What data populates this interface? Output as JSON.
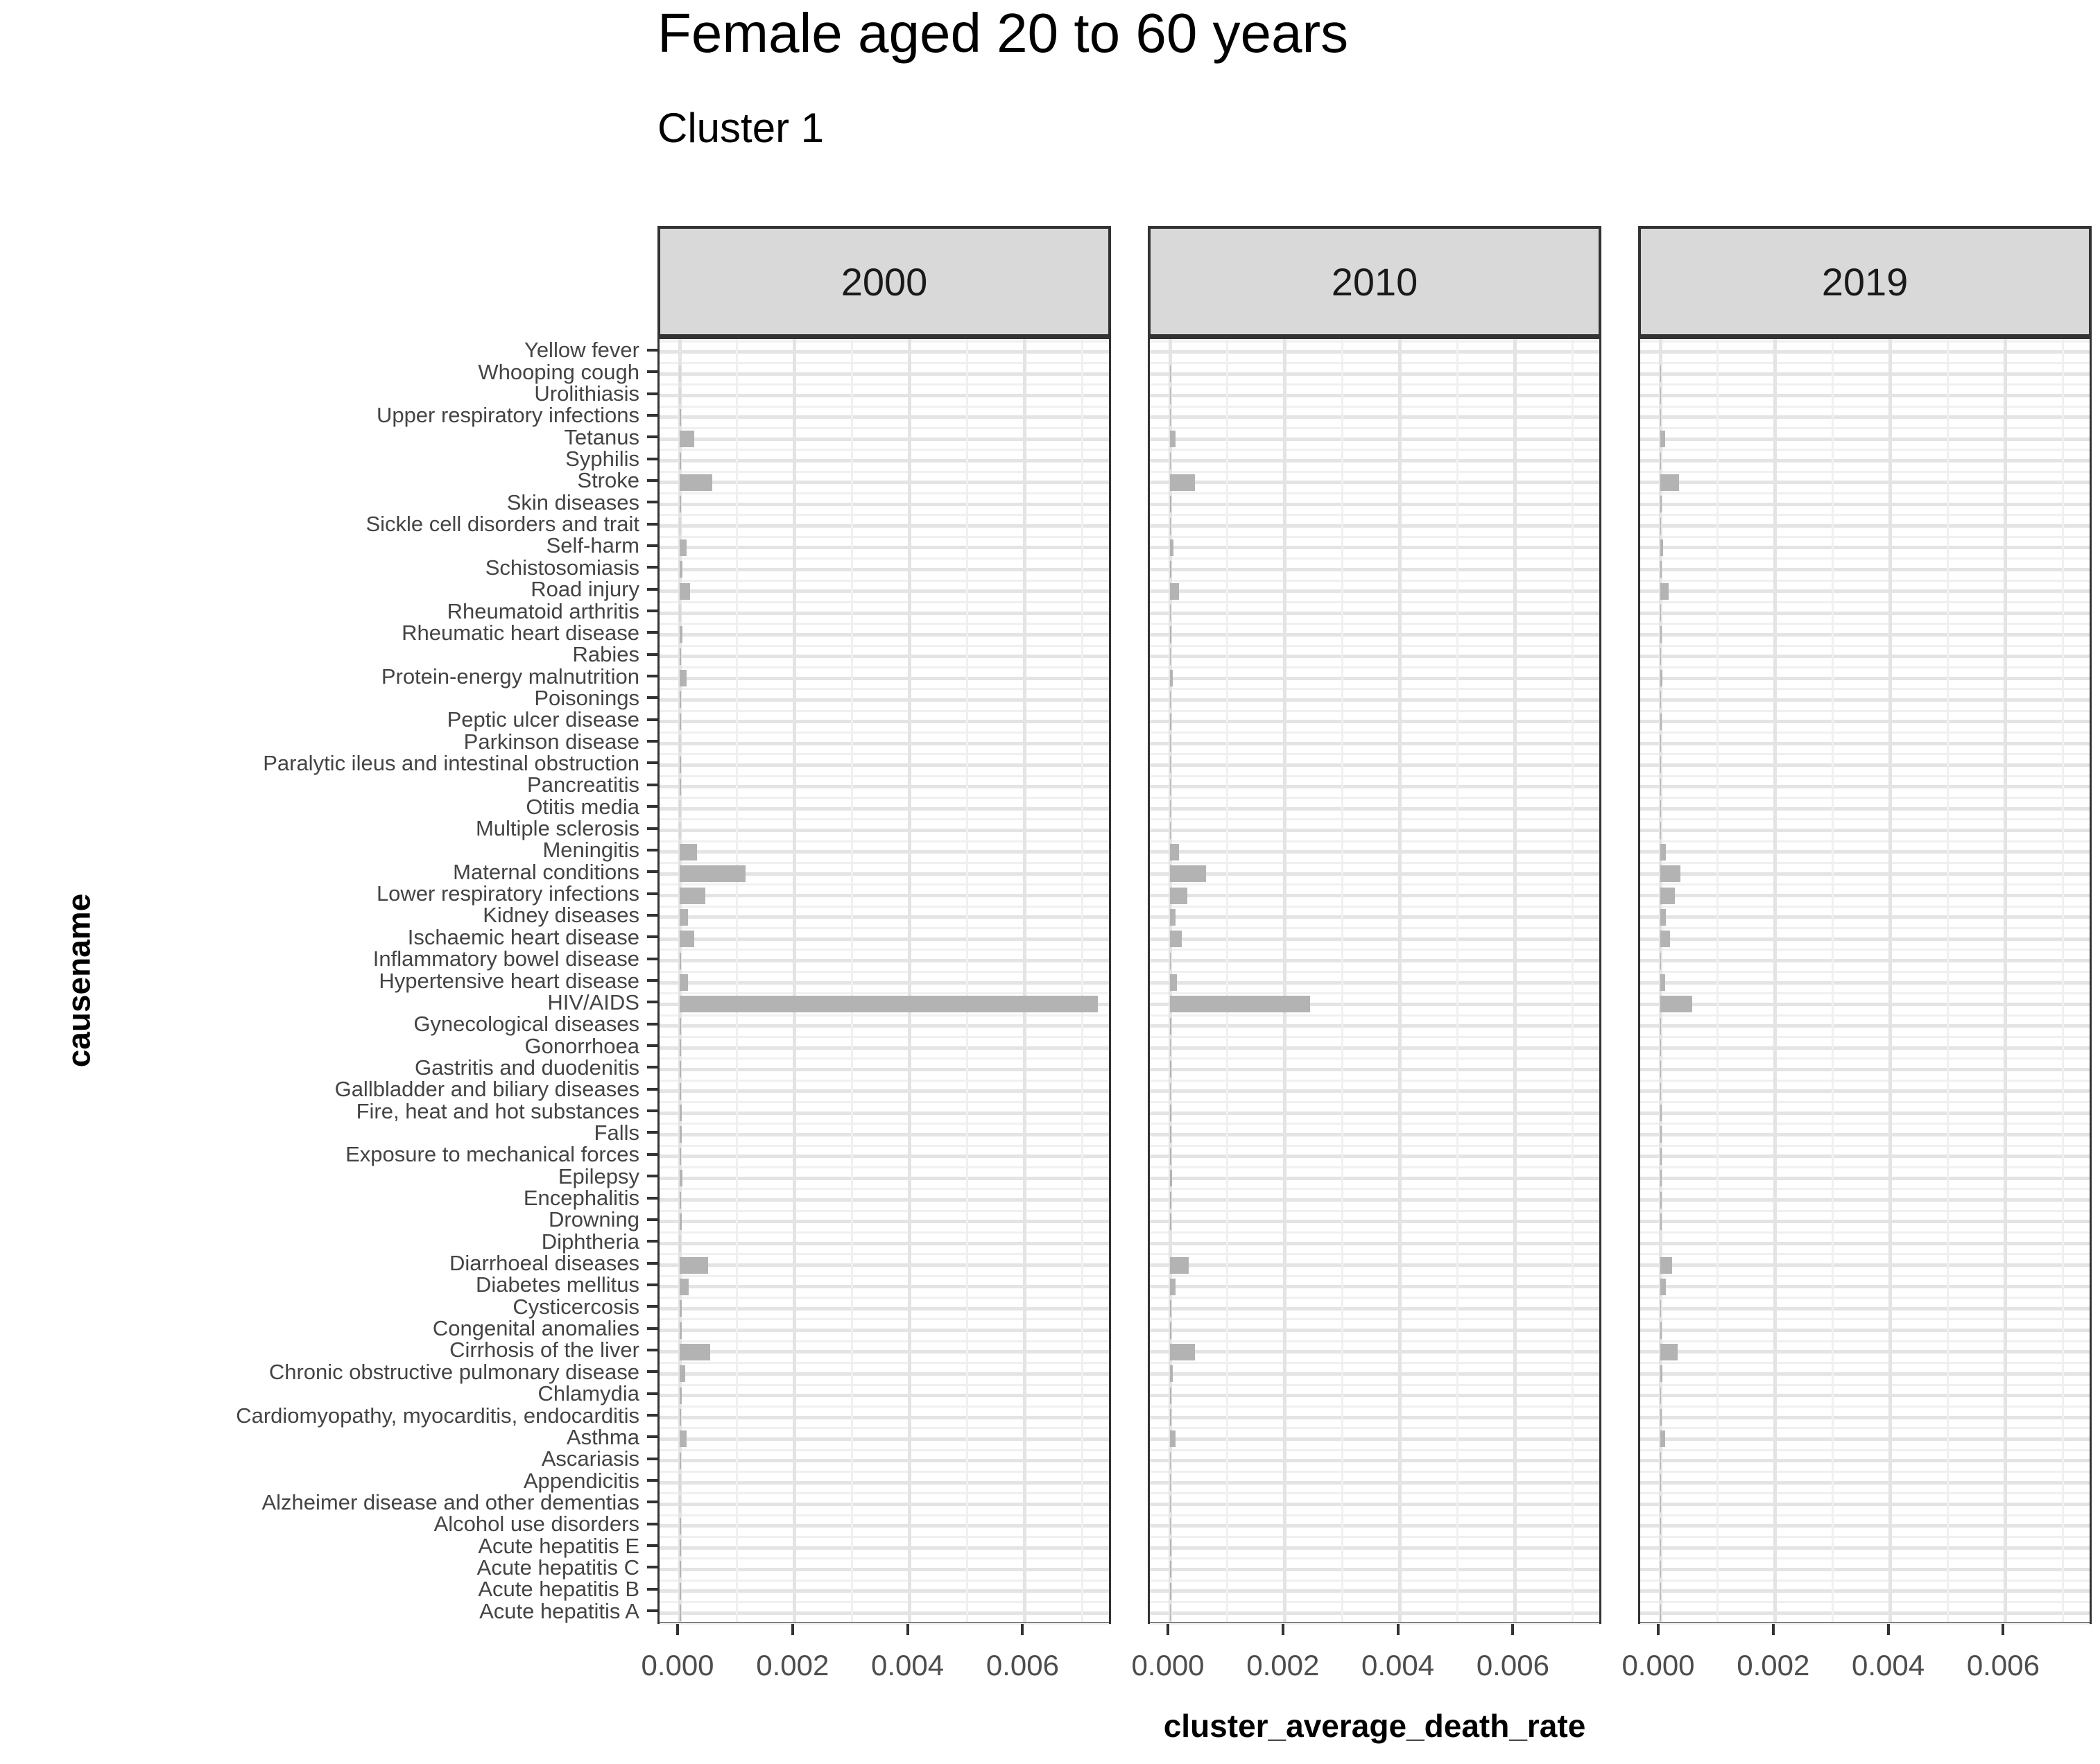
{
  "title": "Female aged 20 to 60 years",
  "subtitle": "Cluster 1",
  "axes": {
    "x_title": "cluster_average_death_rate",
    "y_title": "causename",
    "x_tick_labels": [
      "0.000",
      "0.002",
      "0.004",
      "0.006"
    ],
    "x_tick_values": [
      0,
      0.002,
      0.004,
      0.006
    ],
    "x_minor_values": [
      0.001,
      0.003,
      0.005,
      0.007
    ]
  },
  "facets": [
    "2000",
    "2010",
    "2019"
  ],
  "colors": {
    "bar": "#b3b3b3",
    "strip_bg": "#d9d9d9",
    "strip_border": "#333333",
    "panel_border": "#333333",
    "grid_major": "#e4e4e4",
    "grid_minor": "#f0f0f0",
    "axis_text": "#4d4d4d",
    "tick_mark": "#333333"
  },
  "chart_data": {
    "type": "bar",
    "orientation": "horizontal",
    "title": "Female aged 20 to 60 years",
    "subtitle": "Cluster 1",
    "xlabel": "cluster_average_death_rate",
    "ylabel": "causename",
    "xlim": [
      0,
      0.0078
    ],
    "grid": true,
    "legend_position": "none",
    "facet_labels": [
      "2000",
      "2010",
      "2019"
    ],
    "categories": [
      "Yellow fever",
      "Whooping cough",
      "Urolithiasis",
      "Upper respiratory infections",
      "Tetanus",
      "Syphilis",
      "Stroke",
      "Skin diseases",
      "Sickle cell disorders and trait",
      "Self-harm",
      "Schistosomiasis",
      "Road injury",
      "Rheumatoid arthritis",
      "Rheumatic heart disease",
      "Rabies",
      "Protein-energy malnutrition",
      "Poisonings",
      "Peptic ulcer disease",
      "Parkinson disease",
      "Paralytic ileus and intestinal obstruction",
      "Pancreatitis",
      "Otitis media",
      "Multiple sclerosis",
      "Meningitis",
      "Maternal conditions",
      "Lower respiratory infections",
      "Kidney diseases",
      "Ischaemic heart disease",
      "Inflammatory bowel disease",
      "Hypertensive heart disease",
      "HIV/AIDS",
      "Gynecological diseases",
      "Gonorrhoea",
      "Gastritis and duodenitis",
      "Gallbladder and biliary diseases",
      "Fire, heat and hot substances",
      "Falls",
      "Exposure to mechanical forces",
      "Epilepsy",
      "Encephalitis",
      "Drowning",
      "Diphtheria",
      "Diarrhoeal diseases",
      "Diabetes mellitus",
      "Cysticercosis",
      "Congenital anomalies",
      "Cirrhosis of the liver",
      "Chronic obstructive pulmonary disease",
      "Chlamydia",
      "Cardiomyopathy, myocarditis, endocarditis",
      "Asthma",
      "Ascariasis",
      "Appendicitis",
      "Alzheimer disease and other dementias",
      "Alcohol use disorders",
      "Acute hepatitis E",
      "Acute hepatitis C",
      "Acute hepatitis B",
      "Acute hepatitis A"
    ],
    "series": [
      {
        "name": "2000",
        "values": [
          0,
          1e-05,
          1e-05,
          2e-05,
          0.00025,
          2e-05,
          0.00057,
          2e-05,
          1e-05,
          0.00012,
          5e-05,
          0.00018,
          1e-05,
          5e-05,
          2e-05,
          0.00012,
          2e-05,
          3e-05,
          1e-05,
          2e-05,
          2e-05,
          1e-05,
          1e-05,
          0.0003,
          0.00115,
          0.00045,
          0.00014,
          0.00025,
          2e-05,
          0.00015,
          0.00727,
          3e-05,
          2e-05,
          3e-05,
          2e-05,
          4e-05,
          4e-05,
          3e-05,
          5e-05,
          3e-05,
          4e-05,
          1e-05,
          0.00049,
          0.00016,
          4e-05,
          4e-05,
          0.00053,
          0.0001,
          4e-05,
          3e-05,
          0.00012,
          2e-05,
          1e-05,
          1e-05,
          2e-05,
          3e-05,
          2e-05,
          3e-05,
          2e-05
        ]
      },
      {
        "name": "2010",
        "values": [
          0,
          1e-05,
          1e-05,
          1e-05,
          0.0001,
          1e-05,
          0.00043,
          2e-05,
          1e-05,
          6e-05,
          3e-05,
          0.00016,
          1e-05,
          3e-05,
          1e-05,
          5e-05,
          1e-05,
          2e-05,
          1e-05,
          1e-05,
          1e-05,
          1e-05,
          1e-05,
          0.00016,
          0.00063,
          0.0003,
          0.0001,
          0.00021,
          1e-05,
          0.00012,
          0.00244,
          2e-05,
          1e-05,
          2e-05,
          1e-05,
          3e-05,
          3e-05,
          2e-05,
          4e-05,
          2e-05,
          3e-05,
          0,
          0.00033,
          0.0001,
          2e-05,
          2e-05,
          0.00043,
          5e-05,
          2e-05,
          3e-05,
          0.0001,
          1e-05,
          1e-05,
          1e-05,
          1e-05,
          2e-05,
          2e-05,
          2e-05,
          1e-05
        ]
      },
      {
        "name": "2019",
        "values": [
          0,
          1e-05,
          1e-05,
          1e-05,
          8e-05,
          1e-05,
          0.00032,
          2e-05,
          1e-05,
          5e-05,
          2e-05,
          0.00015,
          1e-05,
          2e-05,
          1e-05,
          4e-05,
          1e-05,
          2e-05,
          1e-05,
          1e-05,
          1e-05,
          1e-05,
          1e-05,
          0.0001,
          0.00035,
          0.00025,
          0.0001,
          0.00017,
          1e-05,
          8e-05,
          0.00055,
          1e-05,
          1e-05,
          1e-05,
          1e-05,
          2e-05,
          3e-05,
          2e-05,
          3e-05,
          2e-05,
          2e-05,
          0,
          0.0002,
          0.0001,
          1e-05,
          2e-05,
          0.0003,
          4e-05,
          1e-05,
          2e-05,
          8e-05,
          1e-05,
          1e-05,
          1e-05,
          1e-05,
          1e-05,
          1e-05,
          1e-05,
          1e-05
        ]
      }
    ]
  }
}
